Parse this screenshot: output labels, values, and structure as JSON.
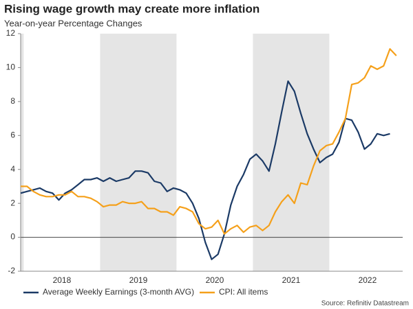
{
  "chart_data": {
    "type": "line",
    "title": "Rising wage growth may create more inflation",
    "subtitle": "Year-on-year Percentage Changes",
    "source": "Source: Refinitiv Datastream",
    "x": [
      2017.96,
      2018.043,
      2018.127,
      2018.21,
      2018.293,
      2018.377,
      2018.46,
      2018.543,
      2018.627,
      2018.71,
      2018.793,
      2018.877,
      2018.96,
      2019.043,
      2019.127,
      2019.21,
      2019.293,
      2019.377,
      2019.46,
      2019.543,
      2019.627,
      2019.71,
      2019.793,
      2019.877,
      2019.96,
      2020.043,
      2020.127,
      2020.21,
      2020.293,
      2020.377,
      2020.46,
      2020.543,
      2020.627,
      2020.71,
      2020.793,
      2020.877,
      2020.96,
      2021.043,
      2021.127,
      2021.21,
      2021.293,
      2021.377,
      2021.46,
      2021.543,
      2021.627,
      2021.71,
      2021.793,
      2021.877,
      2021.96,
      2022.043,
      2022.127,
      2022.21,
      2022.293,
      2022.377,
      2022.46,
      2022.543,
      2022.627,
      2022.71,
      2022.793,
      2022.877
    ],
    "series": [
      {
        "name": "Average Weekly Earnings (3-month AVG)",
        "color": "#1b3a66",
        "values": [
          2.6,
          2.7,
          2.8,
          2.9,
          2.7,
          2.6,
          2.2,
          2.6,
          2.8,
          3.1,
          3.4,
          3.4,
          3.5,
          3.3,
          3.5,
          3.3,
          3.4,
          3.5,
          3.9,
          3.9,
          3.8,
          3.3,
          3.2,
          2.7,
          2.9,
          2.8,
          2.6,
          2.0,
          1.1,
          -0.3,
          -1.3,
          -1.0,
          0.2,
          1.9,
          3.0,
          3.7,
          4.6,
          4.9,
          4.5,
          3.9,
          5.5,
          7.4,
          9.2,
          8.6,
          7.3,
          6.1,
          5.2,
          4.4,
          4.7,
          4.9,
          5.6,
          7.0,
          6.9,
          6.2,
          5.2,
          5.5,
          6.1,
          6.0,
          6.1,
          null
        ]
      },
      {
        "name": "CPI: All items",
        "color": "#f5a01a",
        "values": [
          3.0,
          3.0,
          2.7,
          2.5,
          2.4,
          2.4,
          2.5,
          2.5,
          2.7,
          2.4,
          2.4,
          2.3,
          2.1,
          1.8,
          1.9,
          1.9,
          2.1,
          2.0,
          2.0,
          2.1,
          1.7,
          1.7,
          1.5,
          1.5,
          1.3,
          1.8,
          1.7,
          1.5,
          0.8,
          0.5,
          0.6,
          1.0,
          0.2,
          0.5,
          0.7,
          0.3,
          0.6,
          0.7,
          0.4,
          0.7,
          1.5,
          2.1,
          2.5,
          2.0,
          3.2,
          3.1,
          4.2,
          5.1,
          5.4,
          5.5,
          6.2,
          7.0,
          9.0,
          9.1,
          9.4,
          10.1,
          9.9,
          10.1,
          11.1,
          10.7
        ]
      }
    ],
    "xlim": [
      2017.96,
      2022.96
    ],
    "xticks": [
      {
        "value": 2018.5,
        "label": "2018"
      },
      {
        "value": 2019.5,
        "label": "2019"
      },
      {
        "value": 2020.5,
        "label": "2020"
      },
      {
        "value": 2021.5,
        "label": "2021"
      },
      {
        "value": 2022.5,
        "label": "2022"
      }
    ],
    "ylim": [
      -2,
      12
    ],
    "yticks": [
      -2,
      0,
      2,
      4,
      6,
      8,
      10,
      12
    ],
    "shaded_ranges": [
      [
        2017,
        2018
      ],
      [
        2019,
        2020
      ],
      [
        2021,
        2022
      ]
    ],
    "shade_color": "#e5e5e5",
    "legend": "bottom"
  }
}
